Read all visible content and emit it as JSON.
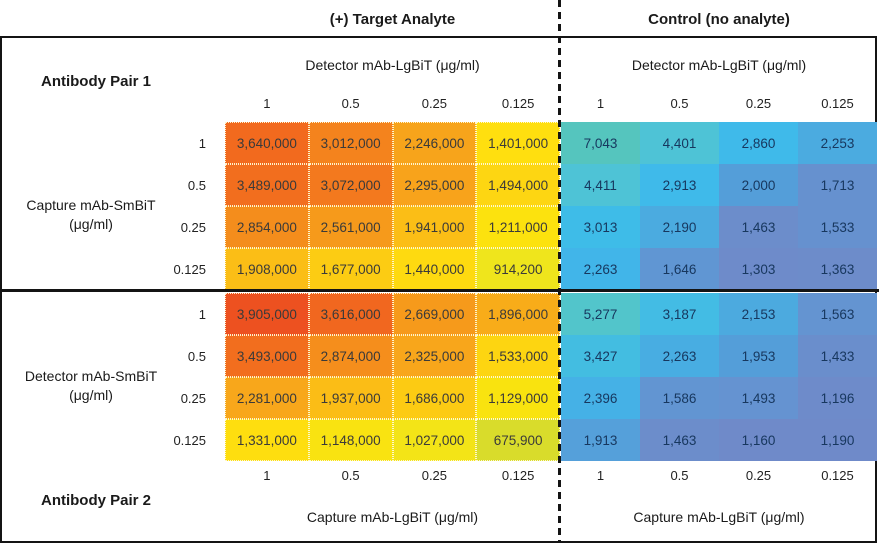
{
  "chart_data": {
    "type": "heatmap",
    "column_group_titles": [
      "(+) Target Analyte",
      "Control (no analyte)"
    ],
    "top_axis_label": "Detector mAb-LgBiT (μg/ml)",
    "bottom_axis_label": "Capture mAb-LgBiT (μg/ml)",
    "col_ticks": [
      "1",
      "0.5",
      "0.25",
      "0.125"
    ],
    "text_colors": {
      "target": "#3A3A3A",
      "control": "#17375E"
    },
    "blocks": [
      {
        "pair_label": "Antibody Pair 1",
        "row_axis_line1": "Capture mAb-SmBiT",
        "row_axis_line2": "(μg/ml)",
        "row_ticks": [
          "1",
          "0.5",
          "0.25",
          "0.125"
        ],
        "target_values": [
          [
            "3,640,000",
            "3,012,000",
            "2,246,000",
            "1,401,000"
          ],
          [
            "3,489,000",
            "3,072,000",
            "2,295,000",
            "1,494,000"
          ],
          [
            "2,854,000",
            "2,561,000",
            "1,941,000",
            "1,211,000"
          ],
          [
            "1,908,000",
            "1,677,000",
            "1,440,000",
            "914,200"
          ]
        ],
        "target_colors": [
          [
            "#F26A1E",
            "#F4831D",
            "#F7A41B",
            "#FFDF0F"
          ],
          [
            "#F26E1E",
            "#F3791E",
            "#F8A31B",
            "#FDD612"
          ],
          [
            "#F48D1C",
            "#F69A1B",
            "#FBBE16",
            "#FCE20E"
          ],
          [
            "#FBBE16",
            "#FCCC13",
            "#FEDA10",
            "#EFE51C"
          ]
        ],
        "control_values": [
          [
            "7,043",
            "4,401",
            "2,860",
            "2,253"
          ],
          [
            "4,411",
            "2,913",
            "2,000",
            "1,713"
          ],
          [
            "3,013",
            "2,190",
            "1,463",
            "1,533"
          ],
          [
            "2,263",
            "1,646",
            "1,303",
            "1,363"
          ]
        ],
        "control_colors": [
          [
            "#55C5BE",
            "#4EC3D6",
            "#3FBAEA",
            "#4BABE0"
          ],
          [
            "#4EC3D6",
            "#3FBAEA",
            "#549ED9",
            "#6691CF"
          ],
          [
            "#3EBCE8",
            "#4BABE0",
            "#6C8DCB",
            "#6691CF"
          ],
          [
            "#41B5E9",
            "#6096D3",
            "#6E8BCA",
            "#6D8CCA"
          ]
        ]
      },
      {
        "pair_label": "Antibody Pair 2",
        "row_axis_line1": "Detector mAb-SmBiT",
        "row_axis_line2": "(μg/ml)",
        "row_ticks": [
          "1",
          "0.5",
          "0.25",
          "0.125"
        ],
        "target_values": [
          [
            "3,905,000",
            "3,616,000",
            "2,669,000",
            "1,896,000"
          ],
          [
            "3,493,000",
            "2,874,000",
            "2,325,000",
            "1,533,000"
          ],
          [
            "2,281,000",
            "1,937,000",
            "1,686,000",
            "1,129,000"
          ],
          [
            "1,331,000",
            "1,148,000",
            "1,027,000",
            "675,900"
          ]
        ],
        "target_colors": [
          [
            "#ED5120",
            "#F1671F",
            "#F69A1B",
            "#F8AC19"
          ],
          [
            "#F26E1E",
            "#F58E1C",
            "#F8A61B",
            "#FDD511"
          ],
          [
            "#F8A71B",
            "#FBBD16",
            "#FCCB13",
            "#F9E30F"
          ],
          [
            "#FEDE0F",
            "#F9E311",
            "#F3E417",
            "#D9DC2B"
          ]
        ],
        "control_values": [
          [
            "5,277",
            "3,187",
            "2,153",
            "1,563"
          ],
          [
            "3,427",
            "2,263",
            "1,953",
            "1,433"
          ],
          [
            "2,396",
            "1,586",
            "1,493",
            "1,196"
          ],
          [
            "1,913",
            "1,463",
            "1,160",
            "1,190"
          ]
        ],
        "control_colors": [
          [
            "#52C5CB",
            "#43BCE4",
            "#4CAADF",
            "#6494D1"
          ],
          [
            "#43BDE1",
            "#48ADE2",
            "#549ED9",
            "#6A8ECC"
          ],
          [
            "#45B1E6",
            "#6295D2",
            "#6593D1",
            "#6E8BCA"
          ],
          [
            "#55A0DA",
            "#6C8DCB",
            "#6F8AC9",
            "#6F8AC9"
          ]
        ]
      }
    ]
  }
}
